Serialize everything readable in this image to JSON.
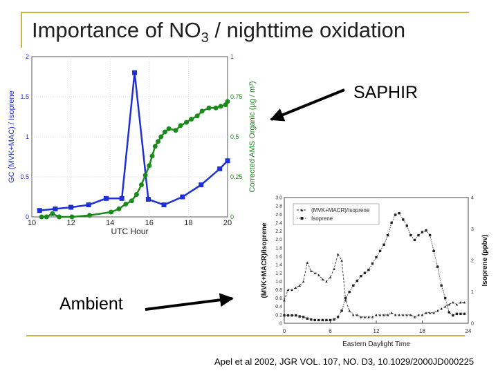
{
  "slide": {
    "title_main": "Importance of NO",
    "title_sub": "3",
    "title_rest": " / nighttime oxidation",
    "label_saphir": "SAPHIR",
    "label_ambient": "Ambient",
    "citation": "Apel et al 2002, JGR VOL. 107, NO. D3, 10.1029/2000JD000225"
  },
  "colors": {
    "accent_rule": "#c8b44a",
    "blue_series": "#1f2fd6",
    "green_series": "#1a8a1a"
  },
  "chart_data": [
    {
      "type": "line",
      "name": "SAPHIR",
      "xlabel": "UTC Hour",
      "ylabel_left": "GC (MVK+MAC) / Isoprene",
      "ylabel_right": "Corrected AMS Organic (µg / m³)",
      "xlim": [
        10,
        20
      ],
      "ylim_left": [
        0,
        2
      ],
      "ylim_right": [
        0,
        1
      ],
      "x_ticks": [
        "10",
        "12",
        "14",
        "16",
        "18",
        "20"
      ],
      "y_ticks_left": [
        "0",
        "0.5",
        "1",
        "1.5",
        "2"
      ],
      "y_ticks_right": [
        "0",
        "0.25",
        "0.5",
        "0.75",
        "1"
      ],
      "grid": true,
      "series": [
        {
          "axis": "left",
          "marker": "square",
          "x": [
            10.4,
            11.2,
            12.0,
            12.9,
            13.8,
            14.6,
            15.25,
            15.95,
            16.75,
            17.7,
            18.65,
            19.6,
            20.0
          ],
          "y": [
            0.08,
            0.1,
            0.12,
            0.15,
            0.23,
            0.23,
            1.8,
            0.22,
            0.15,
            0.25,
            0.4,
            0.6,
            0.7
          ]
        },
        {
          "axis": "right",
          "marker": "circle",
          "x": [
            10.5,
            10.75,
            11.05,
            11.4,
            12.05,
            12.95,
            14.05,
            14.45,
            14.8,
            15.1,
            15.35,
            15.6,
            15.8,
            16.0,
            16.15,
            16.3,
            16.45,
            16.6,
            16.8,
            17.0,
            17.35,
            17.6,
            17.9,
            18.15,
            18.45,
            18.7,
            19.05,
            19.4,
            19.65,
            19.9,
            20.0
          ],
          "y": [
            0.0,
            0.0,
            0.02,
            0.0,
            0.0,
            0.01,
            0.03,
            0.05,
            0.08,
            0.1,
            0.14,
            0.2,
            0.26,
            0.32,
            0.38,
            0.44,
            0.47,
            0.5,
            0.53,
            0.55,
            0.54,
            0.57,
            0.59,
            0.61,
            0.63,
            0.66,
            0.68,
            0.68,
            0.69,
            0.7,
            0.72
          ]
        }
      ]
    },
    {
      "type": "line",
      "name": "Ambient",
      "xlabel": "Eastern Daylight Time",
      "ylabel_left": "(MVK+MACR)/Isoprene",
      "ylabel_right": "Isoprene (ppbv)",
      "xlim": [
        0,
        24
      ],
      "ylim_left": [
        0,
        3
      ],
      "ylim_right": [
        0,
        4
      ],
      "x_ticks": [
        "0",
        "6",
        "12",
        "18",
        "24"
      ],
      "y_ticks_left": [
        "0",
        "0.2",
        "0.4",
        "0.6",
        "0.8",
        "1.0",
        "1.2",
        "1.4",
        "1.6",
        "1.8",
        "2.0",
        "2.2",
        "2.4",
        "2.6",
        "2.8",
        "3.0"
      ],
      "y_ticks_right": [
        "0",
        "1",
        "2",
        "3",
        "4"
      ],
      "grid": false,
      "legend": {
        "position": "top-left",
        "entries": [
          "(MVK+MACR)/Isoprene",
          "Isoprene"
        ]
      },
      "series": [
        {
          "axis": "left",
          "marker": "triangle",
          "x": [
            0,
            0.5,
            1,
            1.5,
            2,
            2.5,
            3,
            3.5,
            4,
            4.5,
            5,
            5.5,
            6,
            6.5,
            7,
            7.5,
            8,
            8.5,
            9,
            9.5,
            10,
            10.5,
            11,
            11.5,
            12,
            12.5,
            13,
            13.5,
            14,
            14.5,
            15,
            15.5,
            16,
            16.5,
            17,
            17.5,
            18,
            18.5,
            19,
            19.5,
            20,
            20.5,
            21,
            21.5,
            22,
            22.5,
            23,
            23.5
          ],
          "y": [
            0.55,
            0.8,
            0.8,
            0.85,
            0.9,
            1.0,
            1.45,
            1.25,
            1.2,
            1.15,
            1.05,
            1.0,
            1.1,
            1.3,
            1.65,
            1.5,
            0.55,
            0.3,
            0.2,
            0.2,
            0.15,
            0.15,
            0.15,
            0.15,
            0.2,
            0.2,
            0.2,
            0.2,
            0.25,
            0.2,
            0.2,
            0.2,
            0.2,
            0.2,
            0.15,
            0.2,
            0.2,
            0.25,
            0.25,
            0.25,
            0.3,
            0.35,
            0.4,
            0.45,
            0.5,
            0.45,
            0.5,
            0.5
          ]
        },
        {
          "axis": "right",
          "marker": "square",
          "x": [
            0,
            0.5,
            1,
            1.5,
            2,
            2.5,
            3,
            3.5,
            4,
            4.5,
            5,
            5.5,
            6,
            6.5,
            7,
            7.5,
            8,
            8.5,
            9,
            9.5,
            10,
            10.5,
            11,
            11.5,
            12,
            12.5,
            13,
            13.5,
            14,
            14.5,
            15,
            15.5,
            16,
            16.5,
            17,
            17.5,
            18,
            18.5,
            19,
            19.5,
            20,
            20.5,
            21,
            21.5,
            22,
            22.5,
            23,
            23.5
          ],
          "y": [
            0.25,
            0.25,
            0.25,
            0.25,
            0.22,
            0.2,
            0.15,
            0.12,
            0.1,
            0.1,
            0.1,
            0.1,
            0.1,
            0.12,
            0.2,
            0.4,
            0.8,
            1.0,
            1.2,
            1.35,
            1.5,
            1.6,
            1.7,
            1.9,
            2.1,
            2.3,
            2.5,
            2.8,
            3.2,
            3.45,
            3.5,
            3.3,
            3.1,
            2.8,
            2.65,
            2.8,
            2.9,
            2.95,
            2.8,
            2.3,
            1.8,
            1.2,
            0.8,
            0.35,
            0.25,
            0.3,
            0.3,
            0.3
          ]
        }
      ]
    }
  ]
}
